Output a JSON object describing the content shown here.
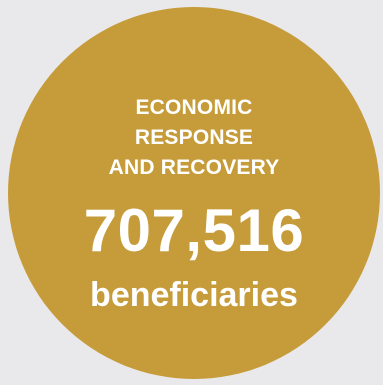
{
  "stat": {
    "category_lines": [
      "ECONOMIC",
      "RESPONSE",
      "AND RECOVERY"
    ],
    "value": "707,516",
    "unit": "beneficiaries"
  },
  "colors": {
    "background": "#e9e9eb",
    "circle": "#c69c3a",
    "text": "#ffffff"
  }
}
